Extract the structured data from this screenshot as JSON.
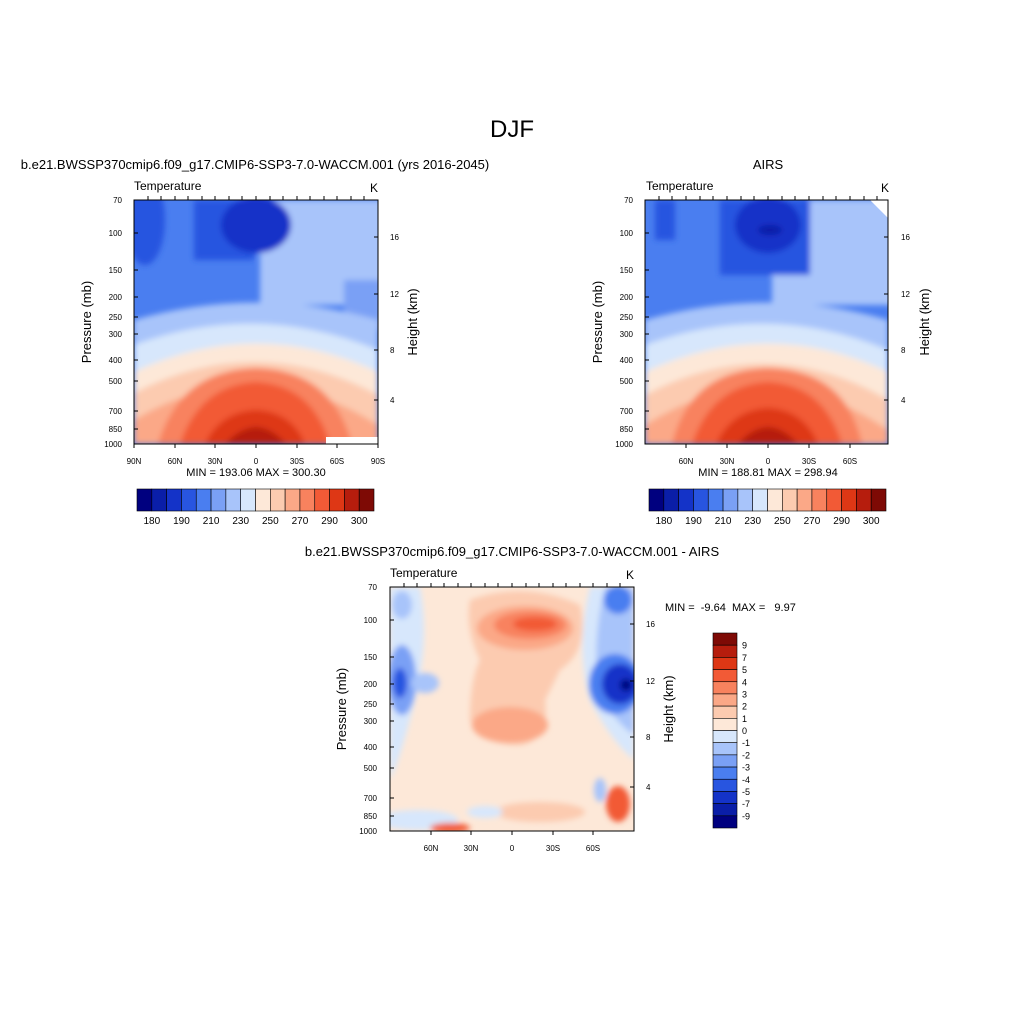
{
  "title": "DJF",
  "panels": {
    "model": {
      "title": "b.e21.BWSSP370cmip6.f09_g17.CMIP6-SSP3-7.0-WACCM.001 (yrs 2016-2045)",
      "left_label": "Temperature",
      "right_label": "K",
      "stats": "MIN = 193.06  MAX = 300.30",
      "x_ticks": [
        "90N",
        "60N",
        "30N",
        "0",
        "30S",
        "60S",
        "90S"
      ]
    },
    "obs": {
      "title": "AIRS",
      "left_label": "Temperature",
      "right_label": "K",
      "stats": "MIN = 188.81  MAX = 298.94",
      "x_ticks": [
        "60N",
        "30N",
        "0",
        "30S",
        "60S"
      ]
    },
    "diff": {
      "title": "b.e21.BWSSP370cmip6.f09_g17.CMIP6-SSP3-7.0-WACCM.001 - AIRS",
      "left_label": "Temperature",
      "right_label": "K",
      "stats": "MIN =  -9.64  MAX =   9.97",
      "x_ticks": [
        "60N",
        "30N",
        "0",
        "30S",
        "60S"
      ]
    }
  },
  "axes": {
    "ylabel": "Pressure (mb)",
    "y2label": "Height (km)",
    "pressure_ticks": [
      "70",
      "100",
      "150",
      "200",
      "250",
      "300",
      "400",
      "500",
      "700",
      "850",
      "1000"
    ],
    "height_ticks": [
      "16",
      "12",
      "8",
      "4"
    ]
  },
  "colorbars": {
    "abs": {
      "labels": [
        "180",
        "190",
        "210",
        "230",
        "250",
        "270",
        "290",
        "300"
      ],
      "colors": [
        "#00007f",
        "#0a1ea8",
        "#1433c8",
        "#2855e0",
        "#4a7ef0",
        "#7aa0f5",
        "#a8c4fa",
        "#d7e7fc",
        "#fde8d8",
        "#fccbb0",
        "#fba887",
        "#f8825e",
        "#f25a36",
        "#de3715",
        "#b61d0d",
        "#7e0a05"
      ]
    },
    "diff": {
      "labels": [
        "9",
        "7",
        "5",
        "4",
        "3",
        "2",
        "1",
        "0",
        "-1",
        "-2",
        "-3",
        "-4",
        "-5",
        "-7",
        "-9"
      ],
      "colors": [
        "#7e0a05",
        "#b61d0d",
        "#de3715",
        "#f25a36",
        "#f8825e",
        "#fba887",
        "#fccbb0",
        "#fde8d8",
        "#d7e7fc",
        "#a8c4fa",
        "#7aa0f5",
        "#4a7ef0",
        "#2855e0",
        "#1433c8",
        "#0a1ea8",
        "#00007f"
      ]
    }
  },
  "chart_data": [
    {
      "type": "heatmap",
      "title": "b.e21.BWSSP370cmip6.f09_g17.CMIP6-SSP3-7.0-WACCM.001 (yrs 2016-2045)",
      "subtitle": "Temperature",
      "units": "K",
      "xlabel": "",
      "ylabel": "Pressure (mb)",
      "y2label": "Height (km)",
      "x_ticks": [
        "90N",
        "60N",
        "30N",
        "0",
        "30S",
        "60S",
        "90S"
      ],
      "y_ticks": [
        70,
        100,
        150,
        200,
        250,
        300,
        400,
        500,
        700,
        850,
        1000
      ],
      "ylim": [
        1000,
        70
      ],
      "min": 193.06,
      "max": 300.3,
      "levels": [
        180,
        185,
        190,
        200,
        210,
        220,
        230,
        240,
        250,
        260,
        270,
        280,
        290,
        295,
        300
      ]
    },
    {
      "type": "heatmap",
      "title": "AIRS",
      "subtitle": "Temperature",
      "units": "K",
      "xlabel": "",
      "ylabel": "Pressure (mb)",
      "y2label": "Height (km)",
      "x_ticks": [
        "60N",
        "30N",
        "0",
        "30S",
        "60S"
      ],
      "y_ticks": [
        70,
        100,
        150,
        200,
        250,
        300,
        400,
        500,
        700,
        850,
        1000
      ],
      "ylim": [
        1000,
        70
      ],
      "min": 188.81,
      "max": 298.94,
      "levels": [
        180,
        185,
        190,
        200,
        210,
        220,
        230,
        240,
        250,
        260,
        270,
        280,
        290,
        295,
        300
      ]
    },
    {
      "type": "heatmap",
      "title": "b.e21.BWSSP370cmip6.f09_g17.CMIP6-SSP3-7.0-WACCM.001 - AIRS",
      "subtitle": "Temperature",
      "units": "K",
      "xlabel": "",
      "ylabel": "Pressure (mb)",
      "y2label": "Height (km)",
      "x_ticks": [
        "60N",
        "30N",
        "0",
        "30S",
        "60S"
      ],
      "y_ticks": [
        70,
        100,
        150,
        200,
        250,
        300,
        400,
        500,
        700,
        850,
        1000
      ],
      "ylim": [
        1000,
        70
      ],
      "min": -9.64,
      "max": 9.97,
      "levels": [
        -9,
        -7,
        -5,
        -4,
        -3,
        -2,
        -1,
        0,
        1,
        2,
        3,
        4,
        5,
        7,
        9
      ]
    }
  ]
}
